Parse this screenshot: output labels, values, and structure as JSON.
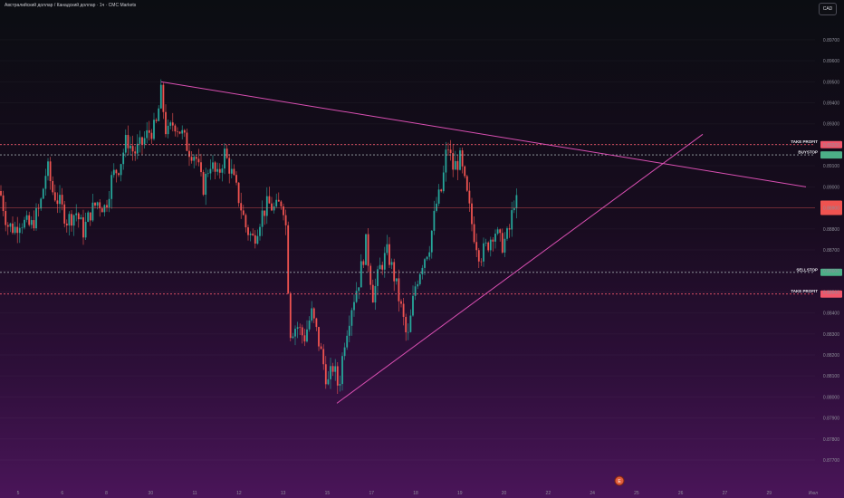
{
  "title": "Австралийский доллар / Канадский доллар · 1ч · CMC Markets",
  "currency": "CAD",
  "colors": {
    "up": "#26a69a",
    "down": "#ef5350",
    "trendline": "#d94fb2",
    "take_profit": "#f0566a",
    "stop": "#9ba3a9",
    "current": "#ef5350",
    "axis_text": "#8f8f9a"
  },
  "chart_data": {
    "type": "candlestick",
    "ylim": [
      0.877,
      0.8976
    ],
    "y_ticks": [
      "0.89700",
      "0.89600",
      "0.89500",
      "0.89400",
      "0.89300",
      "0.89200",
      "0.89100",
      "0.89000",
      "0.88900",
      "0.88800",
      "0.88700",
      "0.88600",
      "0.88500",
      "0.88400",
      "0.88300",
      "0.88200",
      "0.88100",
      "0.88000",
      "0.87900",
      "0.87800",
      "0.87700"
    ],
    "x_ticks": [
      "5",
      "6",
      "8",
      "30",
      "11",
      "12",
      "13",
      "15",
      "17",
      "18",
      "19",
      "20",
      "22",
      "24",
      "25",
      "26",
      "27",
      "29",
      "Июл"
    ],
    "price_path": [
      [
        0,
        0.8898
      ],
      [
        8,
        0.8882
      ],
      [
        16,
        0.888
      ],
      [
        22,
        0.8884
      ],
      [
        34,
        0.8881
      ],
      [
        44,
        0.889
      ],
      [
        52,
        0.891
      ],
      [
        58,
        0.8898
      ],
      [
        66,
        0.8892
      ],
      [
        74,
        0.8884
      ],
      [
        84,
        0.8888
      ],
      [
        92,
        0.8879
      ],
      [
        100,
        0.8888
      ],
      [
        108,
        0.8893
      ],
      [
        116,
        0.889
      ],
      [
        124,
        0.8905
      ],
      [
        132,
        0.891
      ],
      [
        140,
        0.8923
      ],
      [
        148,
        0.8916
      ],
      [
        156,
        0.892
      ],
      [
        164,
        0.8926
      ],
      [
        172,
        0.8928
      ],
      [
        178,
        0.8945
      ],
      [
        184,
        0.8924
      ],
      [
        192,
        0.8931
      ],
      [
        200,
        0.8926
      ],
      [
        208,
        0.8918
      ],
      [
        216,
        0.8915
      ],
      [
        224,
        0.8899
      ],
      [
        232,
        0.8912
      ],
      [
        240,
        0.8904
      ],
      [
        248,
        0.8916
      ],
      [
        256,
        0.8906
      ],
      [
        264,
        0.8894
      ],
      [
        272,
        0.888
      ],
      [
        280,
        0.8875
      ],
      [
        288,
        0.8886
      ],
      [
        296,
        0.8892
      ],
      [
        304,
        0.8889
      ],
      [
        312,
        0.8894
      ],
      [
        316,
        0.888
      ],
      [
        320,
        0.8831
      ],
      [
        328,
        0.8834
      ],
      [
        336,
        0.8828
      ],
      [
        344,
        0.884
      ],
      [
        350,
        0.883
      ],
      [
        356,
        0.8818
      ],
      [
        362,
        0.8806
      ],
      [
        368,
        0.8815
      ],
      [
        374,
        0.8804
      ],
      [
        380,
        0.8826
      ],
      [
        388,
        0.8843
      ],
      [
        396,
        0.8855
      ],
      [
        404,
        0.8873
      ],
      [
        412,
        0.8848
      ],
      [
        420,
        0.8862
      ],
      [
        428,
        0.8869
      ],
      [
        436,
        0.8856
      ],
      [
        444,
        0.884
      ],
      [
        450,
        0.8826
      ],
      [
        458,
        0.8852
      ],
      [
        466,
        0.8864
      ],
      [
        474,
        0.8872
      ],
      [
        482,
        0.8892
      ],
      [
        488,
        0.8899
      ],
      [
        494,
        0.8921
      ],
      [
        500,
        0.8909
      ],
      [
        508,
        0.8913
      ],
      [
        516,
        0.8895
      ],
      [
        522,
        0.888
      ],
      [
        530,
        0.8867
      ],
      [
        538,
        0.8872
      ],
      [
        546,
        0.888
      ],
      [
        554,
        0.8872
      ],
      [
        562,
        0.8878
      ],
      [
        568,
        0.8894
      ],
      [
        572,
        0.8891
      ]
    ],
    "trendline_upper": {
      "from_index": 178,
      "from_price": 0.895,
      "to_index": 890,
      "to_price": 0.89
    },
    "trendline_lower": {
      "from_index": 372,
      "from_price": 0.8797,
      "to_index": 776,
      "to_price": 0.8925
    },
    "levels": [
      {
        "label": "TAKE PROFIT",
        "price": 0.89201,
        "kind": "take_profit"
      },
      {
        "label": "BUYSTOP",
        "price": 0.89152,
        "kind": "stop"
      },
      {
        "label": "SELLSTOP",
        "price": 0.88593,
        "kind": "stop"
      },
      {
        "label": "TAKE PROFIT",
        "price": 0.8849,
        "kind": "take_profit"
      }
    ],
    "current_price": 0.889
  },
  "event_marker_icon": "earnings-icon"
}
